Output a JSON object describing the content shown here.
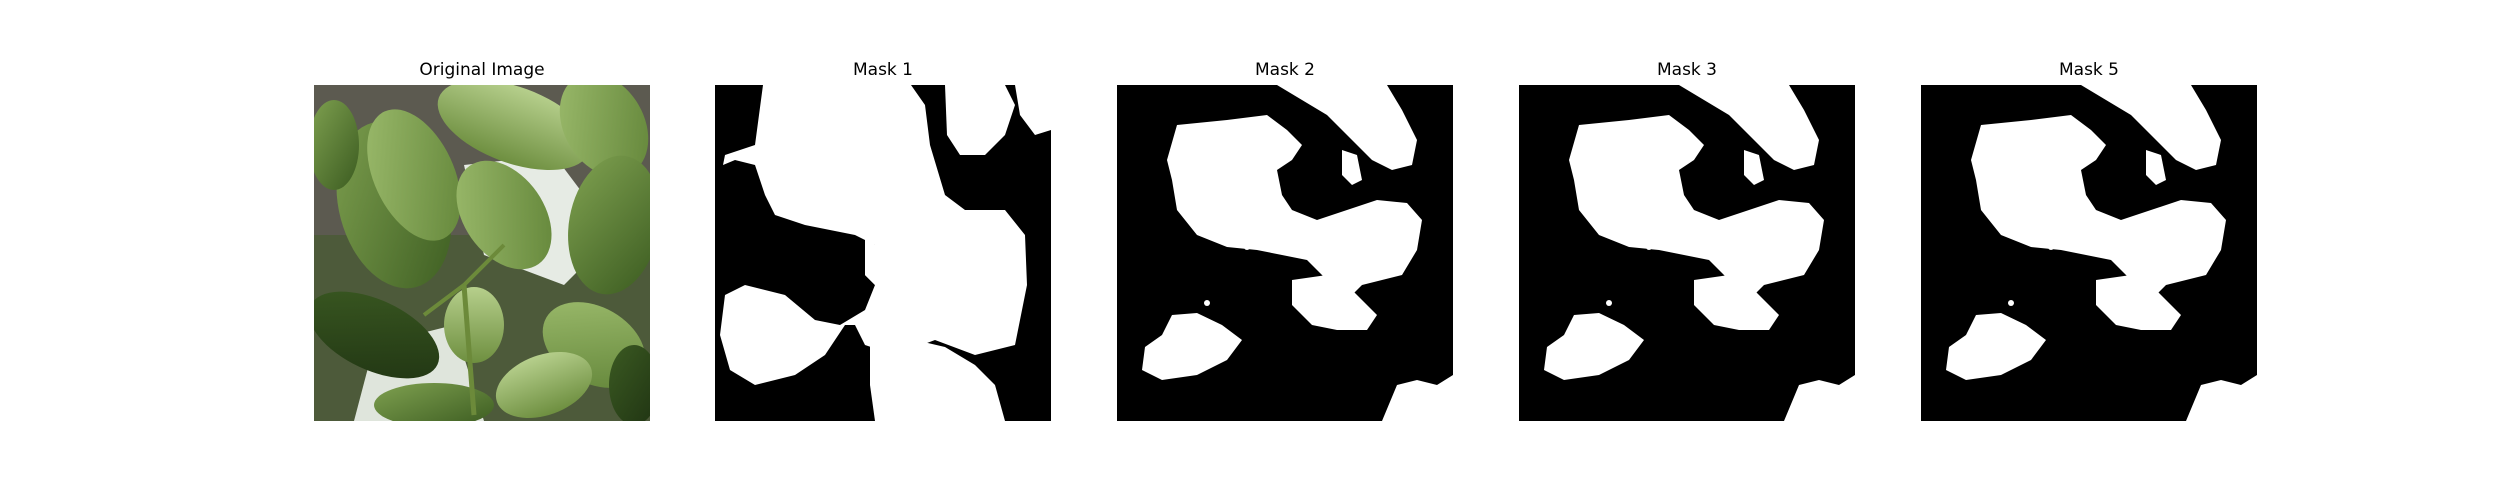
{
  "panels": [
    {
      "title": "Original Image",
      "kind": "photo"
    },
    {
      "title": "Mask 1",
      "kind": "mask"
    },
    {
      "title": "Mask 2",
      "kind": "mask"
    },
    {
      "title": "Mask 3",
      "kind": "mask"
    },
    {
      "title": "Mask 5",
      "kind": "mask"
    }
  ],
  "colors": {
    "background": "#ffffff",
    "mask_background": "#000000",
    "mask_foreground": "#ffffff",
    "leaf_dark": "#2f4a1c",
    "leaf_mid": "#5d7f34",
    "leaf_light": "#a6c27a",
    "soil": "#5a5a52",
    "pot_white": "#e8ece6"
  }
}
